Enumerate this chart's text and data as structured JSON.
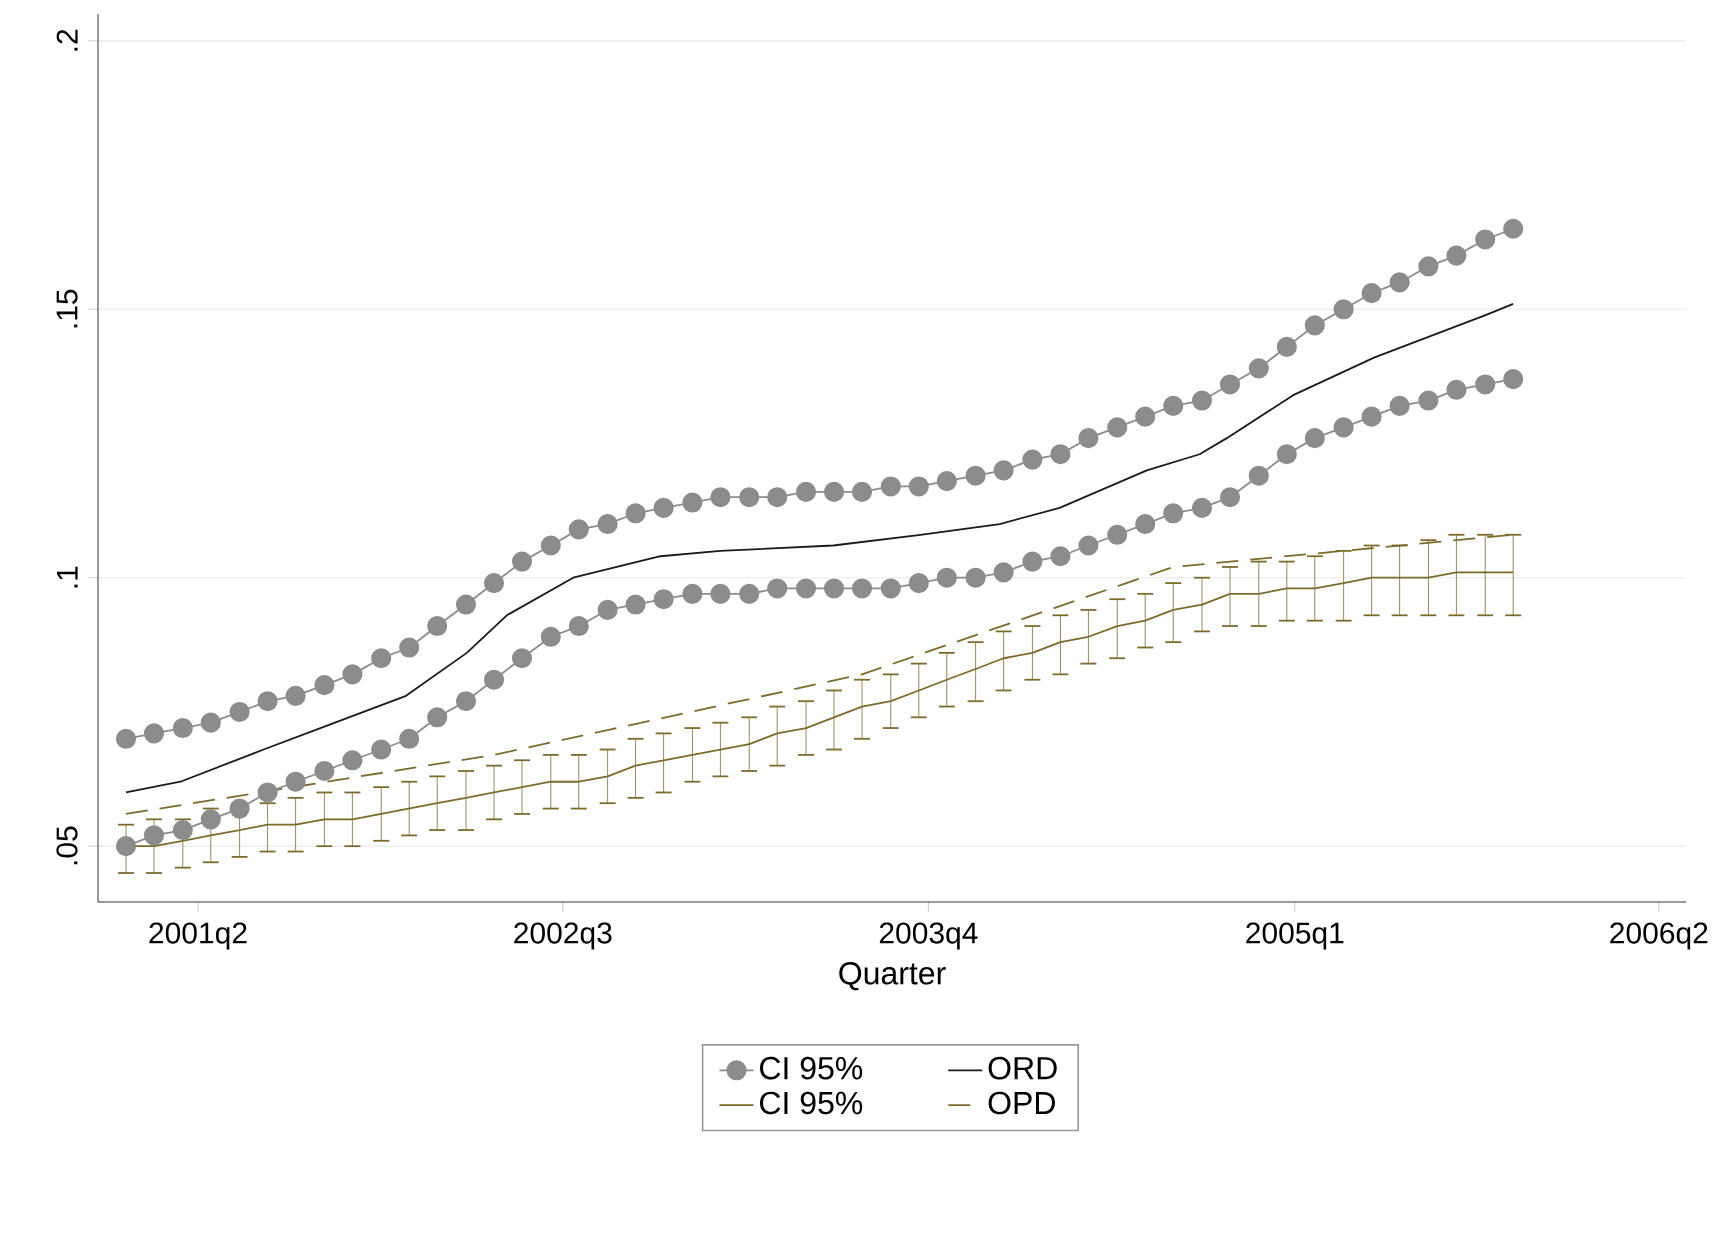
{
  "chart_data": {
    "type": "line",
    "xlabel": "Quarter",
    "grid": "y",
    "legend": "bottom",
    "marker": "none",
    "xlim": [
      "2000-11-27",
      "2006-05-05"
    ],
    "ylim": [
      0.0396,
      0.205
    ],
    "xticks": [
      {
        "value": "2001-04-01",
        "label": "2001q2"
      },
      {
        "value": "2002-07-01",
        "label": "2002q3"
      },
      {
        "value": "2003-10-01",
        "label": "2003q4"
      },
      {
        "value": "2005-01-01",
        "label": "2005q1"
      },
      {
        "value": "2006-04-01",
        "label": "2006q2"
      }
    ],
    "yticks": [
      {
        "value": 0.05,
        "label": ".05"
      },
      {
        "value": 0.1,
        "label": ".1"
      },
      {
        "value": 0.15,
        "label": ".15"
      },
      {
        "value": 0.2,
        "label": ".2"
      }
    ],
    "x": [
      "2001-01-01",
      "2001-02-05",
      "2001-03-13",
      "2001-04-17",
      "2001-05-23",
      "2001-06-27",
      "2001-08-01",
      "2001-09-06",
      "2001-10-11",
      "2001-11-16",
      "2001-12-21",
      "2002-01-25",
      "2002-03-02",
      "2002-04-06",
      "2002-05-11",
      "2002-06-16",
      "2002-07-21",
      "2002-08-26",
      "2002-09-30",
      "2002-11-04",
      "2002-12-10",
      "2003-01-14",
      "2003-02-19",
      "2003-03-26",
      "2003-05-01",
      "2003-06-05",
      "2003-07-10",
      "2003-08-15",
      "2003-09-19",
      "2003-10-24",
      "2003-11-29",
      "2004-01-03",
      "2004-02-08",
      "2004-03-14",
      "2004-04-18",
      "2004-05-24",
      "2004-06-28",
      "2004-08-02",
      "2004-09-07",
      "2004-10-12",
      "2004-11-17",
      "2004-12-22",
      "2005-01-26",
      "2005-03-03",
      "2005-04-07",
      "2005-05-12",
      "2005-06-17",
      "2005-07-22",
      "2005-08-27",
      "2005-10-01"
    ],
    "series": [
      {
        "name": "CI 95%",
        "color": "#8c8c8c",
        "marker": "circle",
        "values": [
          0.07,
          0.071,
          0.072,
          0.073,
          0.075,
          0.077,
          0.078,
          0.08,
          0.082,
          0.085,
          0.087,
          0.091,
          0.095,
          0.099,
          0.103,
          0.106,
          0.109,
          0.11,
          0.112,
          0.113,
          0.114,
          0.115,
          0.115,
          0.115,
          0.116,
          0.116,
          0.116,
          0.117,
          0.117,
          0.118,
          0.119,
          0.12,
          0.122,
          0.123,
          0.126,
          0.128,
          0.13,
          0.132,
          0.133,
          0.136,
          0.139,
          0.143,
          0.147,
          0.15,
          0.153,
          0.155,
          0.158,
          0.16,
          0.163,
          0.165
        ]
      },
      {
        "name": "ORD",
        "color": "#1a1a1a",
        "x": [
          "2001-01-01",
          "2001-03-10",
          "2001-06-22",
          "2001-09-01",
          "2001-12-17",
          "2002-03-03",
          "2002-04-22",
          "2002-07-14",
          "2002-10-31",
          "2003-01-14",
          "2003-06-04",
          "2003-09-21",
          "2003-12-29",
          "2004-03-13",
          "2004-06-30",
          "2004-09-04",
          "2004-10-08",
          "2004-12-30",
          "2005-04-10",
          "2005-08-29",
          "2005-10-01"
        ],
        "values": [
          0.06,
          0.062,
          0.068,
          0.072,
          0.078,
          0.086,
          0.093,
          0.1,
          0.104,
          0.105,
          0.106,
          0.108,
          0.11,
          0.113,
          0.12,
          0.123,
          0.126,
          0.134,
          0.141,
          0.149,
          0.151
        ]
      },
      {
        "name": "CI 95%",
        "color": "#7d6b2c",
        "values": [
          0.05,
          0.05,
          0.051,
          0.052,
          0.053,
          0.054,
          0.054,
          0.055,
          0.055,
          0.056,
          0.057,
          0.058,
          0.059,
          0.06,
          0.061,
          0.062,
          0.062,
          0.063,
          0.065,
          0.066,
          0.067,
          0.068,
          0.069,
          0.071,
          0.072,
          0.074,
          0.076,
          0.077,
          0.079,
          0.081,
          0.083,
          0.085,
          0.086,
          0.088,
          0.089,
          0.091,
          0.092,
          0.094,
          0.095,
          0.097,
          0.097,
          0.098,
          0.098,
          0.099,
          0.1,
          0.1,
          0.1,
          0.101,
          0.101,
          0.101
        ],
        "errors": [
          [
            0.045,
            0.054
          ],
          [
            0.045,
            0.055
          ],
          [
            0.046,
            0.055
          ],
          [
            0.047,
            0.057
          ],
          [
            0.048,
            0.058
          ],
          [
            0.049,
            0.058
          ],
          [
            0.049,
            0.059
          ],
          [
            0.05,
            0.06
          ],
          [
            0.05,
            0.06
          ],
          [
            0.051,
            0.061
          ],
          [
            0.052,
            0.062
          ],
          [
            0.053,
            0.063
          ],
          [
            0.053,
            0.064
          ],
          [
            0.055,
            0.065
          ],
          [
            0.056,
            0.066
          ],
          [
            0.057,
            0.067
          ],
          [
            0.057,
            0.067
          ],
          [
            0.058,
            0.068
          ],
          [
            0.059,
            0.07
          ],
          [
            0.06,
            0.071
          ],
          [
            0.062,
            0.072
          ],
          [
            0.063,
            0.073
          ],
          [
            0.064,
            0.074
          ],
          [
            0.065,
            0.076
          ],
          [
            0.067,
            0.077
          ],
          [
            0.068,
            0.079
          ],
          [
            0.07,
            0.081
          ],
          [
            0.072,
            0.082
          ],
          [
            0.074,
            0.084
          ],
          [
            0.076,
            0.086
          ],
          [
            0.077,
            0.088
          ],
          [
            0.079,
            0.09
          ],
          [
            0.081,
            0.091
          ],
          [
            0.082,
            0.093
          ],
          [
            0.084,
            0.094
          ],
          [
            0.085,
            0.096
          ],
          [
            0.087,
            0.097
          ],
          [
            0.088,
            0.099
          ],
          [
            0.09,
            0.1
          ],
          [
            0.091,
            0.102
          ],
          [
            0.091,
            0.103
          ],
          [
            0.092,
            0.103
          ],
          [
            0.092,
            0.104
          ],
          [
            0.092,
            0.105
          ],
          [
            0.093,
            0.106
          ],
          [
            0.093,
            0.106
          ],
          [
            0.093,
            0.107
          ],
          [
            0.093,
            0.108
          ],
          [
            0.093,
            0.108
          ],
          [
            0.093,
            0.108
          ]
        ]
      },
      {
        "name": "OPD",
        "color": "#7d6b2c",
        "line_style": "dashed",
        "x": [
          "2001-01-01",
          "2002-04-06",
          "2003-07-10",
          "2004-08-02",
          "2005-10-01"
        ],
        "values": [
          0.056,
          0.067,
          0.082,
          0.102,
          0.108
        ]
      },
      {
        "color": "#8c8c8c",
        "marker": "circle",
        "values": [
          0.05,
          0.052,
          0.053,
          0.055,
          0.057,
          0.06,
          0.062,
          0.064,
          0.066,
          0.068,
          0.07,
          0.074,
          0.077,
          0.081,
          0.085,
          0.089,
          0.091,
          0.094,
          0.095,
          0.096,
          0.097,
          0.097,
          0.097,
          0.098,
          0.098,
          0.098,
          0.098,
          0.098,
          0.099,
          0.1,
          0.1,
          0.101,
          0.103,
          0.104,
          0.106,
          0.108,
          0.11,
          0.112,
          0.113,
          0.115,
          0.119,
          0.123,
          0.126,
          0.128,
          0.13,
          0.132,
          0.133,
          0.135,
          0.136,
          0.137
        ]
      }
    ]
  }
}
